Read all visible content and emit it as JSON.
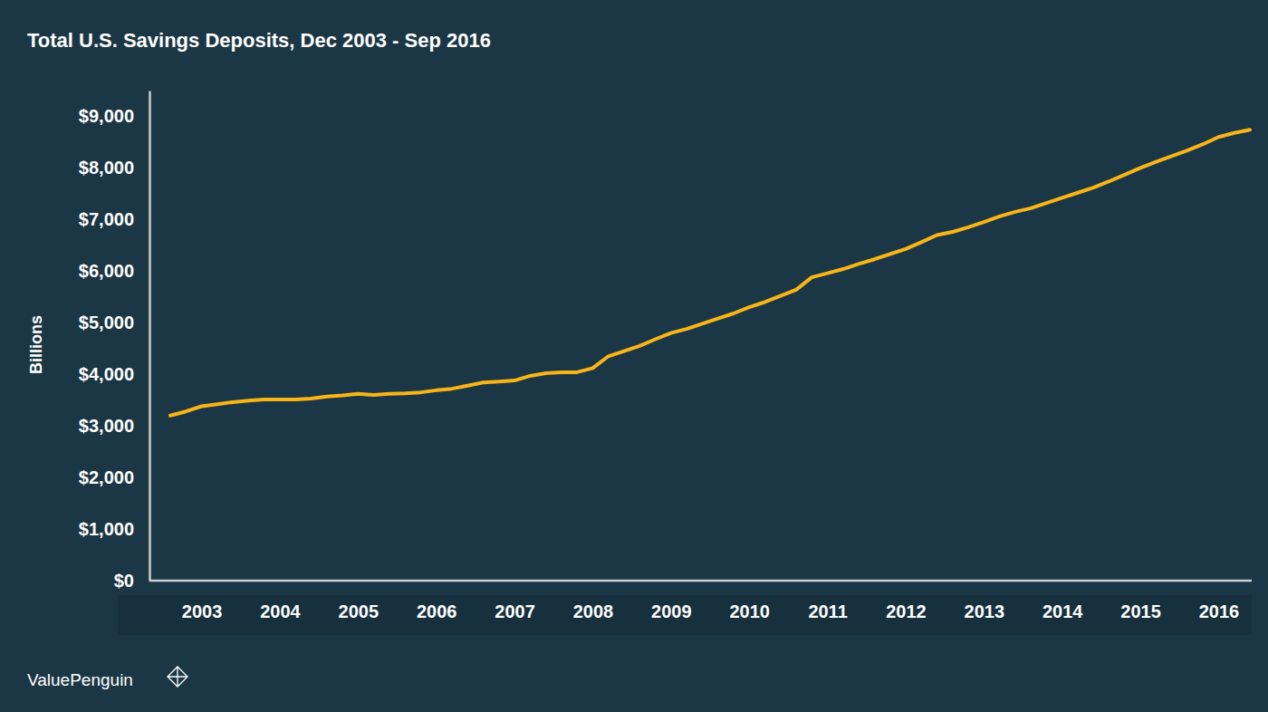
{
  "chart_data": {
    "type": "line",
    "title": "Total U.S. Savings Deposits, Dec 2003 - Sep 2016",
    "y_label": "Billions",
    "source": "ValuePenguin",
    "categories": [
      null,
      null,
      "2003",
      null,
      null,
      null,
      null,
      "2004",
      null,
      null,
      null,
      null,
      "2005",
      null,
      null,
      null,
      null,
      "2006",
      null,
      null,
      null,
      null,
      "2007",
      null,
      null,
      null,
      null,
      "2008",
      null,
      null,
      null,
      null,
      "2009",
      null,
      null,
      null,
      null,
      "2010",
      null,
      null,
      null,
      null,
      "2011",
      null,
      null,
      null,
      null,
      "2012",
      null,
      null,
      null,
      null,
      "2013",
      null,
      null,
      null,
      null,
      "2014",
      null,
      null,
      null,
      null,
      "2015",
      null,
      null,
      null,
      null,
      "2016",
      null,
      null
    ],
    "values": [
      3200,
      3280,
      3380,
      3420,
      3460,
      3490,
      3510,
      3510,
      3510,
      3530,
      3570,
      3590,
      3620,
      3600,
      3620,
      3630,
      3650,
      3690,
      3720,
      3780,
      3840,
      3860,
      3880,
      3970,
      4020,
      4040,
      4040,
      4120,
      4350,
      4450,
      4550,
      4680,
      4800,
      4880,
      4980,
      5080,
      5180,
      5300,
      5400,
      5520,
      5640,
      5880,
      5960,
      6040,
      6140,
      6230,
      6330,
      6430,
      6560,
      6700,
      6760,
      6850,
      6950,
      7060,
      7150,
      7220,
      7320,
      7420,
      7520,
      7620,
      7740,
      7870,
      8000,
      8120,
      8230,
      8340,
      8460,
      8600,
      8680,
      8740
    ],
    "color": "#f7b519",
    "ylim": [
      0,
      9500
    ],
    "yticks": [
      {
        "value": 0,
        "label": "$0"
      },
      {
        "value": 1000,
        "label": "$1,000"
      },
      {
        "value": 2000,
        "label": "$2,000"
      },
      {
        "value": 3000,
        "label": "$3,000"
      },
      {
        "value": 4000,
        "label": "$4,000"
      },
      {
        "value": 5000,
        "label": "$5,000"
      },
      {
        "value": 6000,
        "label": "$6,000"
      },
      {
        "value": 7000,
        "label": "$7,000"
      },
      {
        "value": 8000,
        "label": "$8,000"
      },
      {
        "value": 9000,
        "label": "$9,000"
      }
    ],
    "grid": false
  }
}
